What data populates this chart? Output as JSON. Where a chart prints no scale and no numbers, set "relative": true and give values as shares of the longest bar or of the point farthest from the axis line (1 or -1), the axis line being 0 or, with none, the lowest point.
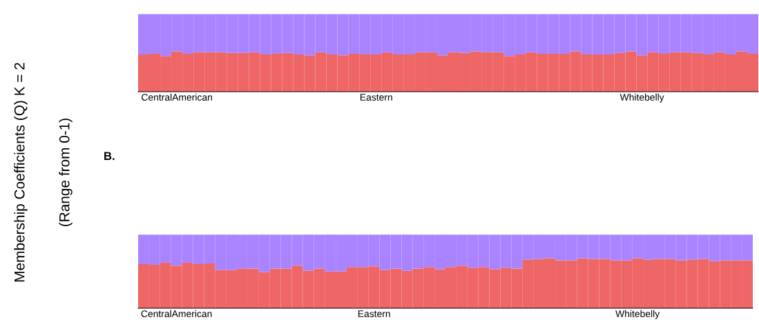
{
  "chart_data": [
    {
      "type": "bar",
      "stacked": true,
      "relative": true,
      "ylabel": "Membership Coefficients (Q) K = 2",
      "annotations": [
        "(Range from 0-1)"
      ],
      "categories": [
        null,
        null,
        null,
        "CentralAmerican",
        null,
        null,
        null,
        null,
        null,
        null,
        null,
        null,
        null,
        null,
        null,
        null,
        null,
        null,
        null,
        null,
        null,
        "Eastern",
        null,
        null,
        null,
        null,
        null,
        null,
        null,
        null,
        null,
        null,
        null,
        null,
        null,
        null,
        null,
        null,
        null,
        null,
        null,
        null,
        null,
        null,
        null,
        "Whitebelly",
        null,
        null,
        null,
        null,
        null,
        null,
        null,
        null,
        null,
        null
      ],
      "series": [
        {
          "color": "#ee6666",
          "values": [
            0.48,
            0.49,
            0.46,
            0.52,
            0.49,
            0.51,
            0.51,
            0.51,
            0.5,
            0.5,
            0.51,
            0.48,
            0.49,
            0.5,
            0.48,
            0.47,
            0.51,
            0.48,
            0.47,
            0.49,
            0.48,
            0.48,
            0.51,
            0.48,
            0.48,
            0.51,
            0.51,
            0.47,
            0.51,
            0.5,
            0.52,
            0.51,
            0.51,
            0.46,
            0.48,
            0.51,
            0.49,
            0.49,
            0.49,
            0.52,
            0.48,
            0.48,
            0.48,
            0.5,
            0.52,
            0.47,
            0.51,
            0.49,
            0.51,
            0.51,
            0.5,
            0.48,
            0.51,
            0.48,
            0.52,
            0.49
          ]
        },
        {
          "color": "#aa84ff",
          "values": [
            0.52,
            0.51,
            0.54,
            0.48,
            0.51,
            0.49,
            0.49,
            0.49,
            0.5,
            0.5,
            0.49,
            0.52,
            0.51,
            0.5,
            0.52,
            0.53,
            0.49,
            0.52,
            0.53,
            0.51,
            0.52,
            0.52,
            0.49,
            0.52,
            0.52,
            0.49,
            0.49,
            0.53,
            0.49,
            0.5,
            0.48,
            0.49,
            0.49,
            0.54,
            0.52,
            0.49,
            0.51,
            0.51,
            0.51,
            0.48,
            0.52,
            0.52,
            0.52,
            0.5,
            0.48,
            0.53,
            0.49,
            0.51,
            0.49,
            0.49,
            0.5,
            0.52,
            0.49,
            0.52,
            0.48,
            0.51
          ]
        }
      ]
    },
    {
      "type": "bar",
      "stacked": true,
      "relative": true,
      "title": "B.",
      "categories": [
        null,
        null,
        null,
        "CentralAmerican",
        null,
        null,
        null,
        null,
        null,
        null,
        null,
        null,
        null,
        null,
        null,
        null,
        null,
        null,
        null,
        null,
        null,
        "Eastern",
        null,
        null,
        null,
        null,
        null,
        null,
        null,
        null,
        null,
        null,
        null,
        null,
        null,
        null,
        null,
        null,
        null,
        null,
        null,
        null,
        null,
        null,
        null,
        "Whitebelly",
        null,
        null,
        null,
        null,
        null,
        null,
        null,
        null,
        null,
        null
      ],
      "series": [
        {
          "color": "#ee6666",
          "values": [
            0.6,
            0.59,
            0.62,
            0.58,
            0.62,
            0.6,
            0.61,
            0.52,
            0.52,
            0.54,
            0.54,
            0.49,
            0.54,
            0.54,
            0.58,
            0.51,
            0.54,
            0.5,
            0.5,
            0.56,
            0.56,
            0.57,
            0.52,
            0.54,
            0.51,
            0.54,
            0.56,
            0.53,
            0.56,
            0.58,
            0.55,
            0.56,
            0.53,
            0.55,
            0.54,
            0.66,
            0.67,
            0.68,
            0.65,
            0.65,
            0.68,
            0.67,
            0.67,
            0.65,
            0.65,
            0.68,
            0.66,
            0.67,
            0.67,
            0.65,
            0.66,
            0.67,
            0.64,
            0.65,
            0.65,
            0.65
          ]
        },
        {
          "color": "#aa84ff",
          "values": [
            0.4,
            0.41,
            0.38,
            0.42,
            0.38,
            0.4,
            0.39,
            0.48,
            0.48,
            0.46,
            0.46,
            0.51,
            0.46,
            0.46,
            0.42,
            0.49,
            0.46,
            0.5,
            0.5,
            0.44,
            0.44,
            0.43,
            0.48,
            0.46,
            0.49,
            0.46,
            0.44,
            0.47,
            0.44,
            0.42,
            0.45,
            0.44,
            0.47,
            0.45,
            0.46,
            0.34,
            0.33,
            0.32,
            0.35,
            0.35,
            0.32,
            0.33,
            0.33,
            0.35,
            0.35,
            0.32,
            0.34,
            0.33,
            0.33,
            0.35,
            0.34,
            0.33,
            0.36,
            0.35,
            0.35,
            0.35
          ]
        }
      ]
    }
  ]
}
